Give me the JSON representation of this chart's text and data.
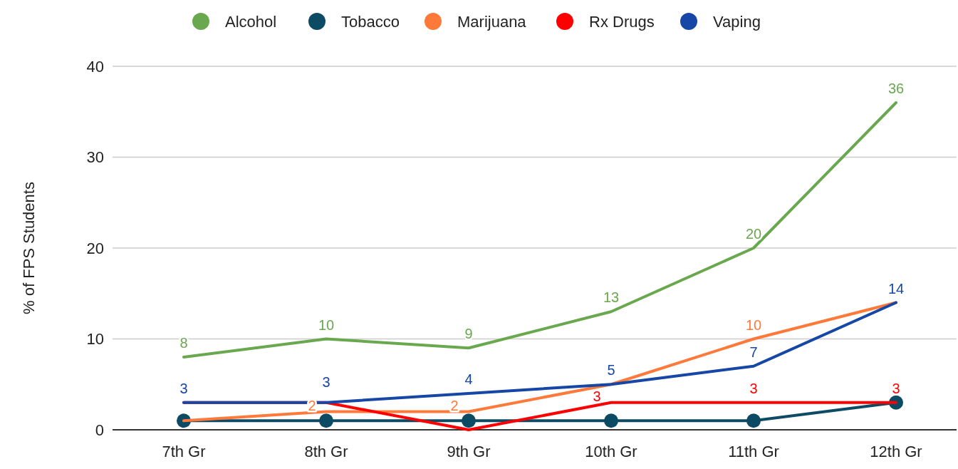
{
  "chart_data": {
    "type": "line",
    "ylabel": "% of FPS Students",
    "categories": [
      "7th Gr",
      "8th Gr",
      "9th Gr",
      "10th Gr",
      "11th Gr",
      "12th Gr"
    ],
    "ylim": [
      0,
      40
    ],
    "yticks": [
      0,
      10,
      20,
      30,
      40
    ],
    "grid": "y",
    "legend": "top",
    "line_style": "solid",
    "series": [
      {
        "name": "Alcohol",
        "color": "#6aa84f",
        "marker": "none",
        "values": [
          8,
          10,
          9,
          13,
          20,
          36
        ],
        "value_labels": [
          "8",
          "10",
          "9",
          "13",
          "20",
          "36"
        ]
      },
      {
        "name": "Tobacco",
        "color": "#0c4b63",
        "marker": "circle",
        "values": [
          1,
          1,
          1,
          1,
          1,
          3
        ],
        "value_labels": [
          null,
          null,
          null,
          null,
          null,
          null
        ]
      },
      {
        "name": "Marijuana",
        "color": "#ff7a3a",
        "marker": "none",
        "values": [
          1,
          2,
          2,
          5,
          10,
          14
        ],
        "value_labels": [
          null,
          "2",
          "2",
          null,
          "10",
          null
        ]
      },
      {
        "name": "Rx Drugs",
        "color": "#ff0000",
        "marker": "none",
        "values": [
          3,
          3,
          0,
          3,
          3,
          3
        ],
        "value_labels": [
          null,
          null,
          null,
          "3",
          "3",
          "3"
        ]
      },
      {
        "name": "Vaping",
        "color": "#1646a6",
        "marker": "none",
        "values": [
          3,
          3,
          4,
          5,
          7,
          14
        ],
        "value_labels": [
          "3",
          "3",
          "4",
          "5",
          "7",
          "14"
        ]
      }
    ]
  }
}
